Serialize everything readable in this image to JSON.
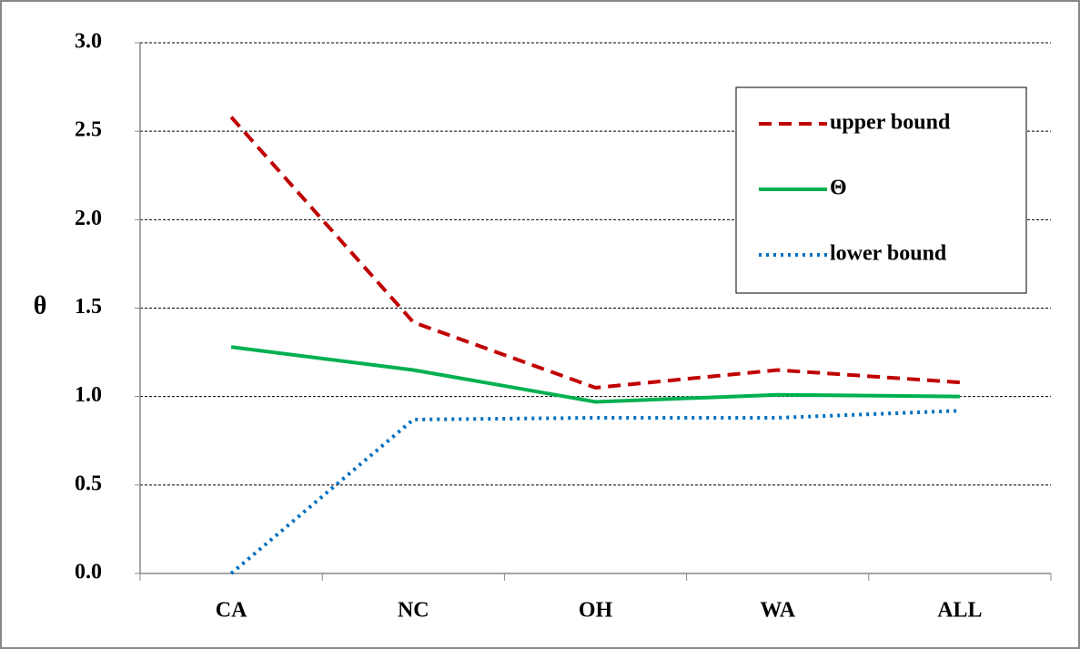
{
  "chart_data": {
    "type": "line",
    "ylabel": "θ",
    "categories": [
      "CA",
      "NC",
      "OH",
      "WA",
      "ALL"
    ],
    "series": [
      {
        "name": "upper bound",
        "color": "#c00000",
        "linestyle": "dashed",
        "values": [
          2.58,
          1.42,
          1.05,
          1.15,
          1.08
        ]
      },
      {
        "name": "Θ",
        "color": "#00b050",
        "linestyle": "solid",
        "values": [
          1.28,
          1.15,
          0.97,
          1.01,
          1.0
        ]
      },
      {
        "name": "lower bound",
        "color": "#0070c0",
        "linestyle": "dotted",
        "values": [
          0.0,
          0.87,
          0.88,
          0.88,
          0.92
        ]
      }
    ],
    "ylim": [
      0,
      3
    ],
    "yticks": [
      {
        "value": 0,
        "label": "0.0"
      },
      0.5,
      {
        "value": 1,
        "label": "1.0"
      },
      1.5,
      {
        "value": 2,
        "label": "2.0"
      },
      2.5,
      {
        "value": 3,
        "label": "3.0"
      }
    ],
    "grid": true,
    "legend": "upper-right"
  }
}
